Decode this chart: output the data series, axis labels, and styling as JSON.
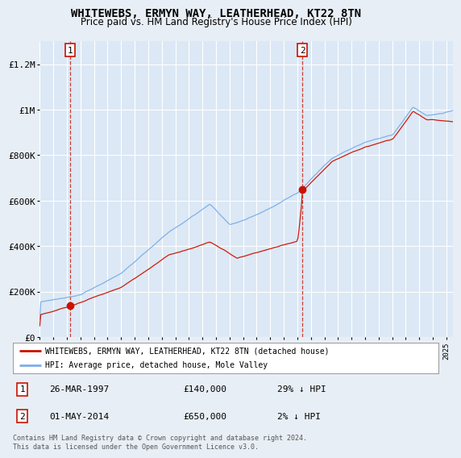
{
  "title": "WHITEWEBS, ERMYN WAY, LEATHERHEAD, KT22 8TN",
  "subtitle": "Price paid vs. HM Land Registry's House Price Index (HPI)",
  "bg_color": "#e8eef5",
  "plot_bg_color": "#dce8f5",
  "grid_color": "#ffffff",
  "sale1": {
    "date_num": 1997.23,
    "price": 140000,
    "label": "1",
    "text": "26-MAR-1997",
    "amount": "£140,000",
    "pct": "29% ↓ HPI"
  },
  "sale2": {
    "date_num": 2014.37,
    "price": 650000,
    "label": "2",
    "text": "01-MAY-2014",
    "amount": "£650,000",
    "pct": "2% ↓ HPI"
  },
  "ylim": [
    0,
    1300000
  ],
  "xlim_start": 1995.0,
  "xlim_end": 2025.5,
  "hpi_color": "#7aaee8",
  "price_color": "#cc1100",
  "legend_label1": "WHITEWEBS, ERMYN WAY, LEATHERHEAD, KT22 8TN (detached house)",
  "legend_label2": "HPI: Average price, detached house, Mole Valley",
  "footer": "Contains HM Land Registry data © Crown copyright and database right 2024.\nThis data is licensed under the Open Government Licence v3.0.",
  "yticks": [
    0,
    200000,
    400000,
    600000,
    800000,
    1000000,
    1200000
  ],
  "ytick_labels": [
    "£0",
    "£200K",
    "£400K",
    "£600K",
    "£800K",
    "£1M",
    "£1.2M"
  ]
}
